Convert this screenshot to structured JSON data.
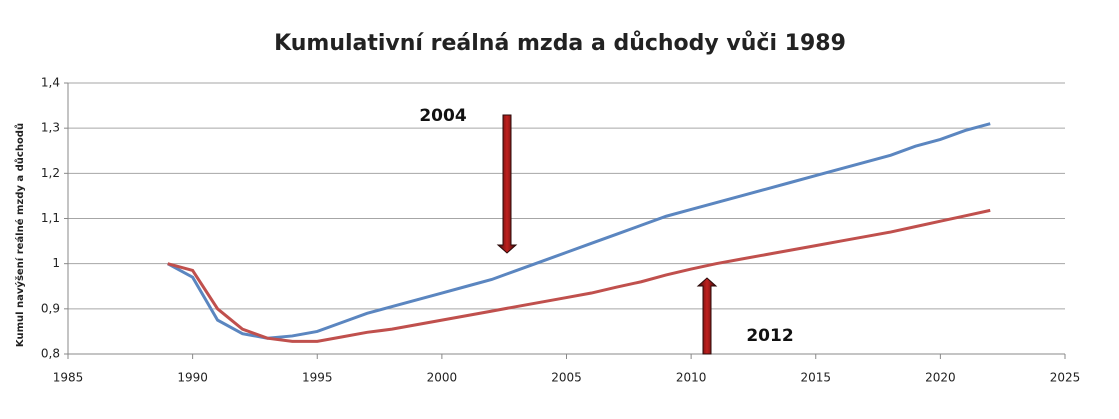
{
  "chart_data": {
    "type": "line",
    "title": "Kumulativní reálná mzda a důchody vůči 1989",
    "y_label": "Kumul navýšení reálné mzdy a důchodů",
    "annotations": [
      "2004",
      "2012"
    ],
    "x": [
      1989,
      1990,
      1991,
      1992,
      1993,
      1994,
      1995,
      1996,
      1997,
      1998,
      1999,
      2000,
      2001,
      2002,
      2003,
      2004,
      2005,
      2006,
      2007,
      2008,
      2009,
      2010,
      2011,
      2012,
      2013,
      2014,
      2015,
      2016,
      2017,
      2018,
      2019,
      2020,
      2021,
      2022
    ],
    "series": [
      {
        "color": "#5b86c0",
        "values": [
          1.0,
          0.97,
          0.875,
          0.845,
          0.835,
          0.84,
          0.85,
          0.87,
          0.89,
          0.905,
          0.92,
          0.935,
          0.95,
          0.965,
          0.985,
          1.005,
          1.025,
          1.045,
          1.065,
          1.085,
          1.105,
          1.12,
          1.135,
          1.15,
          1.165,
          1.18,
          1.195,
          1.21,
          1.225,
          1.24,
          1.26,
          1.275,
          1.295,
          1.31
        ]
      },
      {
        "color": "#c0504d",
        "values": [
          1.0,
          0.985,
          0.9,
          0.855,
          0.835,
          0.828,
          0.828,
          0.838,
          0.848,
          0.855,
          0.865,
          0.875,
          0.885,
          0.895,
          0.905,
          0.915,
          0.925,
          0.935,
          0.948,
          0.96,
          0.975,
          0.988,
          1.0,
          1.01,
          1.02,
          1.03,
          1.04,
          1.05,
          1.06,
          1.07,
          1.082,
          1.094,
          1.106,
          1.118
        ]
      }
    ],
    "xlim": [
      1985,
      2025
    ],
    "xticks": [
      1985,
      1990,
      1995,
      2000,
      2005,
      2010,
      2015,
      2020,
      2025
    ],
    "ylim": [
      0.8,
      1.4
    ],
    "yticks": [
      {
        "value": 0.8,
        "label": "0,8"
      },
      {
        "value": 0.9,
        "label": "0,9"
      },
      1,
      {
        "value": 1.1,
        "label": "1,1"
      },
      {
        "value": 1.2,
        "label": "1,2"
      },
      {
        "value": 1.3,
        "label": "1,3"
      },
      {
        "value": 1.4,
        "label": "1,4"
      }
    ],
    "grid": true
  }
}
